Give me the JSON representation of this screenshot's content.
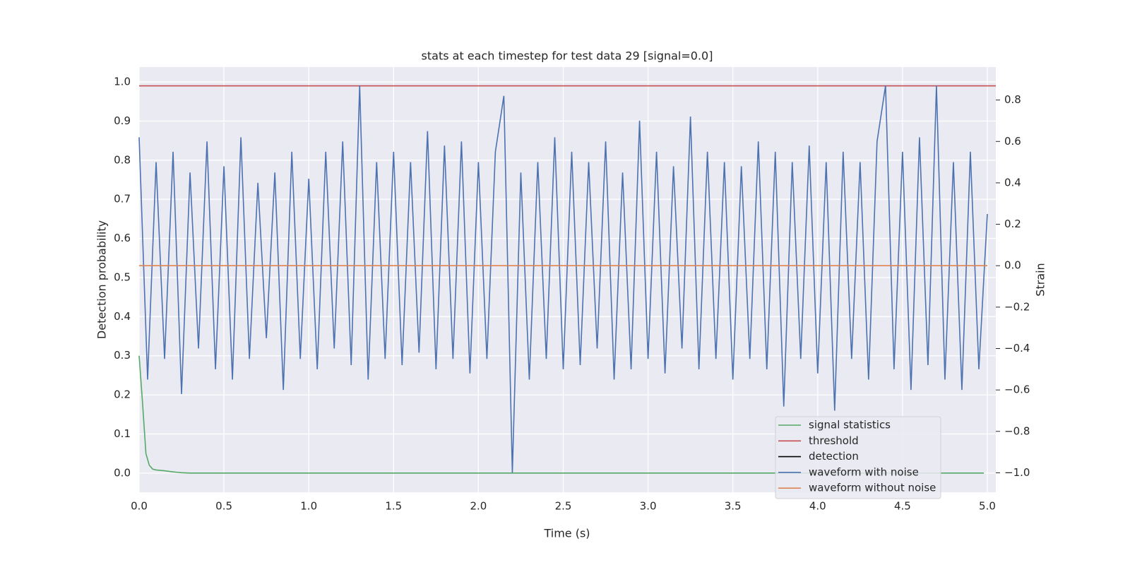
{
  "chart_data": {
    "type": "line",
    "title": "stats at each timestep for test data 29 [signal=0.0]",
    "xlabel": "Time (s)",
    "ylabel": "Detection probability",
    "y2label": "Strain",
    "xlim": [
      0,
      5.05
    ],
    "ylim": [
      -0.049,
      1.038
    ],
    "y2lim": [
      -1.094,
      0.959
    ],
    "xticks": [
      {
        "value": 0,
        "label": "0.0"
      },
      0.5,
      {
        "value": 1,
        "label": "1.0"
      },
      1.5,
      {
        "value": 2,
        "label": "2.0"
      },
      2.5,
      {
        "value": 3,
        "label": "3.0"
      },
      3.5,
      {
        "value": 4,
        "label": "4.0"
      },
      4.5,
      {
        "value": 5,
        "label": "5.0"
      }
    ],
    "yticks": [
      {
        "value": 0,
        "label": "0.0"
      },
      0.1,
      0.2,
      0.3,
      0.4,
      0.5,
      0.6,
      0.7,
      0.8,
      0.9,
      {
        "value": 1,
        "label": "1.0"
      }
    ],
    "y2ticks": [
      {
        "value": -1,
        "label": "−1.0"
      },
      {
        "value": -0.8,
        "label": "−0.8"
      },
      {
        "value": -0.6,
        "label": "−0.6"
      },
      {
        "value": -0.4,
        "label": "−0.4"
      },
      {
        "value": -0.2,
        "label": "−0.2"
      },
      {
        "value": 0,
        "label": "0.0"
      },
      0.2,
      0.4,
      0.6,
      0.8
    ],
    "grid": true,
    "legend": "lower right",
    "series": [
      {
        "name": "signal statistics",
        "color": "#55a868",
        "x": [
          0,
          0.02,
          0.04,
          0.06,
          0.08,
          0.1,
          0.15,
          0.2,
          0.25,
          0.3,
          4.98
        ],
        "values": [
          0.3,
          0.18,
          0.05,
          0.02,
          0.01,
          0.008,
          0.006,
          0.003,
          0.001,
          0,
          0
        ]
      },
      {
        "name": "threshold",
        "color": "#c44e52",
        "x": [
          0,
          5.05
        ],
        "values": [
          0.99,
          0.99
        ]
      },
      {
        "name": "detection",
        "color": "#000000",
        "x": [],
        "values": []
      },
      {
        "name": "waveform with noise",
        "color": "#4c72b0",
        "axis": "y2",
        "x": [
          0,
          0.05,
          0.1,
          0.15,
          0.2,
          0.25,
          0.3,
          0.35,
          0.4,
          0.45,
          0.5,
          0.55,
          0.6,
          0.65,
          0.7,
          0.75,
          0.8,
          0.85,
          0.9,
          0.95,
          1,
          1.05,
          1.1,
          1.15,
          1.2,
          1.25,
          1.3,
          1.35,
          1.4,
          1.45,
          1.5,
          1.55,
          1.6,
          1.65,
          1.7,
          1.75,
          1.8,
          1.85,
          1.9,
          1.95,
          2,
          2.05,
          2.1,
          2.15,
          2.2,
          2.25,
          2.3,
          2.35,
          2.4,
          2.45,
          2.5,
          2.55,
          2.6,
          2.65,
          2.7,
          2.75,
          2.8,
          2.85,
          2.9,
          2.95,
          3,
          3.05,
          3.1,
          3.15,
          3.2,
          3.25,
          3.3,
          3.35,
          3.4,
          3.45,
          3.5,
          3.55,
          3.6,
          3.65,
          3.7,
          3.75,
          3.8,
          3.85,
          3.9,
          3.95,
          4,
          4.05,
          4.1,
          4.15,
          4.2,
          4.25,
          4.3,
          4.35,
          4.4,
          4.45,
          4.5,
          4.55,
          4.6,
          4.65,
          4.7,
          4.75,
          4.8,
          4.85,
          4.9,
          4.95,
          5
        ],
        "values": [
          0.62,
          -0.55,
          0.5,
          -0.45,
          0.55,
          -0.62,
          0.45,
          -0.4,
          0.6,
          -0.5,
          0.48,
          -0.55,
          0.62,
          -0.45,
          0.4,
          -0.35,
          0.45,
          -0.6,
          0.55,
          -0.45,
          0.42,
          -0.5,
          0.55,
          -0.4,
          0.6,
          -0.48,
          0.87,
          -0.55,
          0.5,
          -0.45,
          0.55,
          -0.48,
          0.5,
          -0.42,
          0.65,
          -0.5,
          0.58,
          -0.45,
          0.6,
          -0.52,
          0.5,
          -0.45,
          0.55,
          0.82,
          -1.0,
          0.45,
          -0.55,
          0.5,
          -0.45,
          0.62,
          -0.5,
          0.55,
          -0.48,
          0.5,
          -0.4,
          0.6,
          -0.55,
          0.45,
          -0.5,
          0.7,
          -0.45,
          0.55,
          -0.52,
          0.48,
          -0.4,
          0.72,
          -0.5,
          0.55,
          -0.45,
          0.5,
          -0.55,
          0.48,
          -0.45,
          0.6,
          -0.5,
          0.55,
          -0.68,
          0.5,
          -0.45,
          0.58,
          -0.52,
          0.5,
          -0.7,
          0.55,
          -0.45,
          0.5,
          -0.55,
          0.6,
          0.87,
          -0.5,
          0.55,
          -0.6,
          0.62,
          -0.48,
          0.87,
          -0.55,
          0.5,
          -0.6,
          0.55,
          -0.5,
          0.25
        ]
      },
      {
        "name": "waveform without noise",
        "color": "#dd8452",
        "axis": "y2",
        "x": [
          0,
          5
        ],
        "values": [
          0,
          0
        ]
      }
    ]
  }
}
